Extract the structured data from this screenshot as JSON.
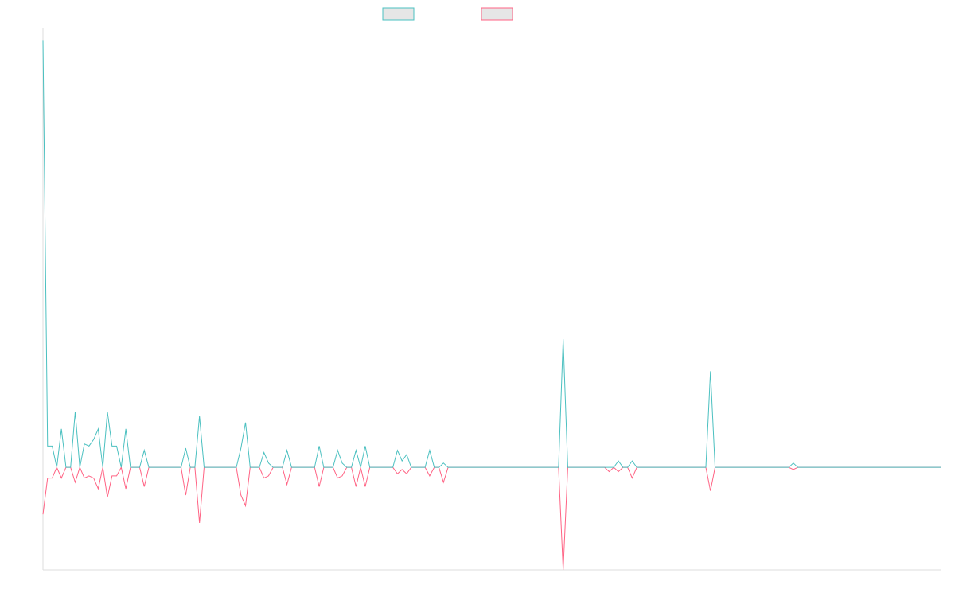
{
  "chart_data": {
    "type": "line",
    "title": "",
    "xlabel": "",
    "ylabel": "",
    "x_count": 196,
    "xlim": [
      0,
      195
    ],
    "ylim": [
      -0.48,
      2.05
    ],
    "grid": false,
    "legend": "top-center",
    "series": [
      {
        "name": "",
        "color": "#4bc0c0",
        "values": [
          2.0,
          0.02,
          0.1,
          0.0,
          0.16,
          0.0,
          0.0,
          0.25,
          0.0,
          0.0,
          0.0,
          0.0,
          0.0,
          0.0,
          0.26,
          0.1,
          0.1,
          0.0,
          0.18,
          0.0,
          0.0,
          0.0,
          0.0,
          0.0,
          0.0,
          0.0,
          0.0,
          0.0,
          0.0,
          0.0,
          0.0,
          0.0,
          0.0,
          0.0,
          0.08,
          0.0,
          0.0,
          0.0,
          0.0,
          0.0,
          0.0,
          0.0,
          0.0,
          0.09,
          0.0,
          0.0,
          0.0,
          0.0,
          0.0,
          0.0,
          0.0,
          0.0,
          0.0,
          0.08,
          0.0,
          0.0,
          0.0,
          0.0,
          0.0,
          0.0,
          0.0,
          0.0,
          0.0,
          0.0,
          0.0,
          0.0,
          0.0,
          0.0,
          0.0,
          0.0,
          0.1,
          0.0,
          0.0,
          0.0,
          0.0,
          0.0,
          0.0,
          0.0,
          0.0,
          0.0,
          0.0,
          0.0,
          0.0,
          0.0,
          0.08,
          0.0,
          0.0,
          0.0,
          0.0,
          0.0,
          0.0,
          0.0,
          0.0,
          0.0,
          0.0,
          0.0,
          0.0,
          0.0,
          0.0,
          0.0,
          0.0,
          0.0,
          0.0,
          0.0,
          0.0,
          0.0,
          0.0,
          0.0,
          0.0,
          0.0,
          0.0,
          0.0,
          0.0,
          0.6,
          0.0,
          0.0,
          0.0,
          0.0,
          0.0,
          0.0,
          0.0,
          0.0,
          0.0,
          0.0,
          0.0,
          0.0,
          0.0,
          0.0,
          0.0,
          0.0,
          0.0,
          0.0,
          0.0,
          0.0,
          0.0,
          0.0,
          0.0,
          0.0,
          0.0,
          0.0,
          0.0,
          0.0,
          0.0,
          0.0,
          0.0,
          0.45,
          0.0,
          0.0,
          0.0,
          0.0,
          0.0,
          0.0,
          0.0,
          0.0,
          0.0,
          0.0,
          0.0,
          0.0,
          0.0,
          0.0,
          0.0,
          0.0,
          0.0,
          0.0,
          0.0,
          0.0,
          0.0,
          0.0,
          0.0,
          0.0,
          0.0,
          0.0,
          0.0,
          0.0,
          0.0,
          0.0,
          0.0,
          0.0,
          0.0,
          0.0,
          0.0,
          0.0,
          0.0,
          0.0,
          0.0,
          0.0,
          0.0,
          0.0,
          0.0,
          0.0,
          0.0,
          0.0,
          0.0,
          0.0,
          0.0,
          0.0
        ]
      },
      {
        "name": "",
        "color": "#ff6384",
        "values": [
          -0.22,
          0.0,
          -0.05,
          0.0,
          -0.05,
          0.0,
          0.0,
          -0.07,
          0.0,
          0.0,
          0.0,
          0.0,
          0.0,
          0.0,
          -0.14,
          -0.04,
          -0.04,
          0.0,
          -0.1,
          0.0,
          0.0,
          0.0,
          0.0,
          0.0,
          0.0,
          0.0,
          0.0,
          0.0,
          0.0,
          0.0,
          0.0,
          0.0,
          0.0,
          0.0,
          -0.09,
          0.0,
          0.0,
          0.0,
          0.0,
          0.0,
          0.0,
          0.0,
          0.0,
          -0.13,
          0.0,
          0.0,
          0.0,
          0.0,
          0.0,
          0.0,
          0.0,
          0.0,
          0.0,
          -0.08,
          0.0,
          0.0,
          0.0,
          0.0,
          0.0,
          0.0,
          0.0,
          0.0,
          0.0,
          0.0,
          0.0,
          0.0,
          0.0,
          0.0,
          0.0,
          0.0,
          -0.09,
          0.0,
          0.0,
          0.0,
          0.0,
          0.0,
          0.0,
          0.0,
          0.0,
          0.0,
          0.0,
          0.0,
          0.0,
          0.0,
          -0.04,
          0.0,
          0.0,
          0.0,
          0.0,
          0.0,
          0.0,
          0.0,
          0.0,
          0.0,
          0.0,
          0.0,
          0.0,
          0.0,
          0.0,
          0.0,
          0.0,
          0.0,
          0.0,
          0.0,
          0.0,
          0.0,
          0.0,
          0.0,
          0.0,
          0.0,
          0.0,
          0.0,
          0.0,
          -0.48,
          0.0,
          0.0,
          0.0,
          0.0,
          0.0,
          0.0,
          0.0,
          0.0,
          0.0,
          0.0,
          0.0,
          0.0,
          0.0,
          0.0,
          0.0,
          0.0,
          0.0,
          0.0,
          0.0,
          0.0,
          0.0,
          0.0,
          0.0,
          0.0,
          0.0,
          0.0,
          0.0,
          0.0,
          0.0,
          0.0,
          0.0,
          -0.11,
          0.0,
          0.0,
          0.0,
          0.0,
          0.0,
          0.0,
          0.0,
          0.0,
          0.0,
          0.0,
          0.0,
          0.0,
          0.0,
          0.0,
          0.0,
          0.0,
          0.0,
          0.0,
          0.0,
          0.0,
          0.0,
          0.0,
          0.0,
          0.0,
          0.0,
          0.0,
          0.0,
          0.0,
          0.0,
          0.0,
          0.0,
          0.0,
          0.0,
          0.0,
          0.0,
          0.0,
          0.0,
          0.0,
          0.0,
          0.0,
          0.0,
          0.0,
          0.0,
          0.0,
          0.0,
          0.0,
          0.0,
          0.0,
          0.0,
          0.0
        ]
      }
    ],
    "spikes": [
      {
        "x": 1,
        "a": 0.1,
        "b": -0.05
      },
      {
        "x": 2,
        "a": 0.03,
        "b": -0.03
      },
      {
        "x": 4,
        "a": 0.18,
        "b": -0.04
      },
      {
        "x": 7,
        "a": 0.26,
        "b": -0.07
      },
      {
        "x": 9,
        "a": 0.11,
        "b": -0.05
      },
      {
        "x": 10,
        "a": 0.1,
        "b": -0.04
      },
      {
        "x": 11,
        "a": 0.13,
        "b": -0.05
      },
      {
        "x": 12,
        "a": 0.18,
        "b": -0.1
      },
      {
        "x": 15,
        "a": 0.03,
        "b": -0.01
      },
      {
        "x": 22,
        "a": 0.08,
        "b": -0.09
      },
      {
        "x": 31,
        "a": 0.09,
        "b": -0.13
      },
      {
        "x": 34,
        "a": 0.24,
        "b": -0.26
      },
      {
        "x": 43,
        "a": 0.09,
        "b": -0.08
      },
      {
        "x": 44,
        "a": 0.21,
        "b": -0.18
      },
      {
        "x": 48,
        "a": 0.07,
        "b": -0.05
      },
      {
        "x": 49,
        "a": 0.02,
        "b": -0.04
      },
      {
        "x": 60,
        "a": 0.1,
        "b": -0.09
      },
      {
        "x": 64,
        "a": 0.08,
        "b": -0.05
      },
      {
        "x": 65,
        "a": 0.02,
        "b": -0.04
      },
      {
        "x": 68,
        "a": 0.08,
        "b": -0.09
      },
      {
        "x": 77,
        "a": 0.08,
        "b": -0.03
      },
      {
        "x": 78,
        "a": 0.03,
        "b": -0.01
      },
      {
        "x": 79,
        "a": 0.06,
        "b": -0.03
      },
      {
        "x": 87,
        "a": 0.02,
        "b": -0.07
      },
      {
        "x": 123,
        "a": 0.0,
        "b": -0.02
      },
      {
        "x": 125,
        "a": 0.03,
        "b": -0.02
      },
      {
        "x": 128,
        "a": 0.03,
        "b": -0.05
      },
      {
        "x": 145,
        "a": 0.17,
        "b": -0.06
      },
      {
        "x": 163,
        "a": 0.02,
        "b": -0.01
      }
    ]
  },
  "legend": {
    "items": [
      {
        "label": "",
        "stroke": "#4bc0c0",
        "fill": "#e6e6e6"
      },
      {
        "label": "",
        "stroke": "#ff6384",
        "fill": "#e6e6e6"
      }
    ]
  }
}
